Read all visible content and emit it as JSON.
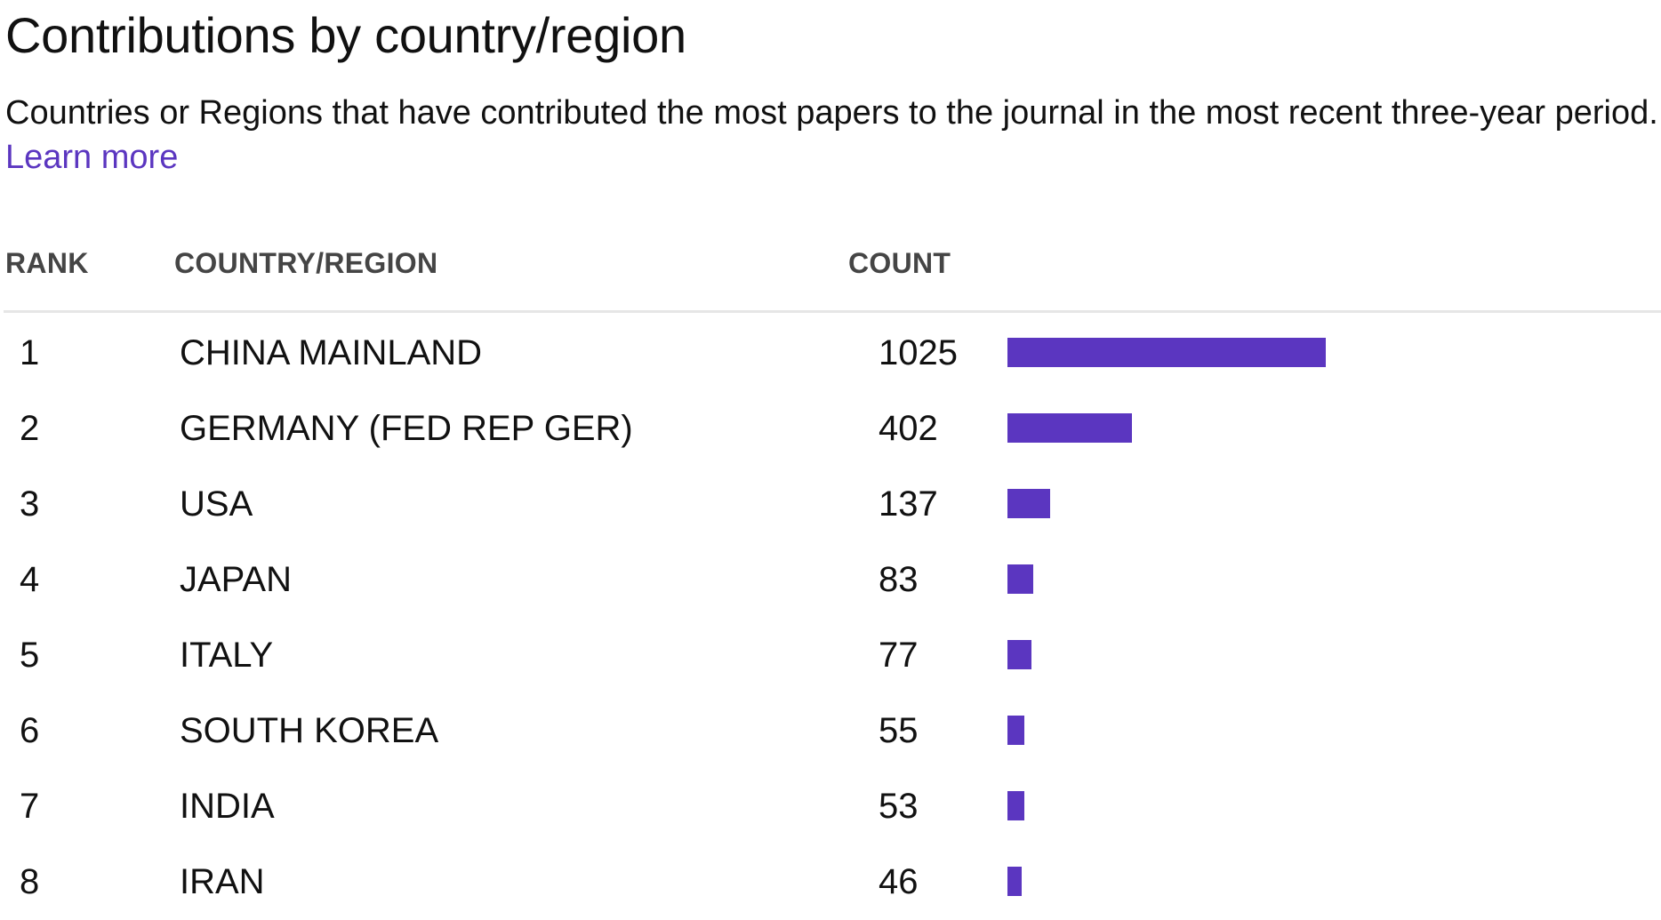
{
  "header": {
    "title": "Contributions by country/region",
    "description": "Countries or Regions that have contributed the most papers to the journal in the most recent three-year period.",
    "learn_more": "Learn more"
  },
  "table": {
    "columns": {
      "rank": "RANK",
      "country": "COUNTRY/REGION",
      "count": "COUNT"
    },
    "bar_color": "#5b36c0",
    "rows": [
      {
        "rank": "1",
        "country": "CHINA MAINLAND",
        "count": "1025",
        "value": 1025
      },
      {
        "rank": "2",
        "country": "GERMANY (FED REP GER)",
        "count": "402",
        "value": 402
      },
      {
        "rank": "3",
        "country": "USA",
        "count": "137",
        "value": 137
      },
      {
        "rank": "4",
        "country": "JAPAN",
        "count": "83",
        "value": 83
      },
      {
        "rank": "5",
        "country": "ITALY",
        "count": "77",
        "value": 77
      },
      {
        "rank": "6",
        "country": "SOUTH KOREA",
        "count": "55",
        "value": 55
      },
      {
        "rank": "7",
        "country": "INDIA",
        "count": "53",
        "value": 53
      },
      {
        "rank": "8",
        "country": "IRAN",
        "count": "46",
        "value": 46
      }
    ]
  }
}
